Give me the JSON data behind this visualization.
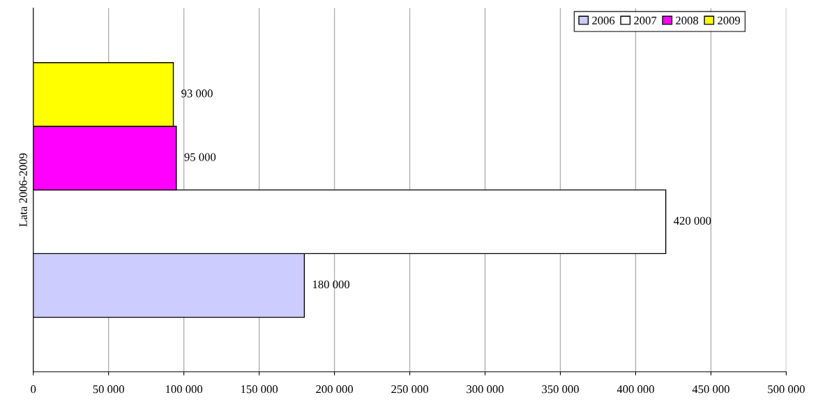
{
  "chart_data": {
    "type": "bar",
    "orientation": "horizontal",
    "ylabel": "Lata 2006-2009",
    "categories": [
      null
    ],
    "series": [
      {
        "name": "2006",
        "color": "#ccccff",
        "values": [
          180000
        ],
        "value_labels": [
          "180 000"
        ]
      },
      {
        "name": "2007",
        "color": "#ffffff",
        "values": [
          420000
        ],
        "value_labels": [
          "420 000"
        ]
      },
      {
        "name": "2008",
        "color": "#ff00ff",
        "values": [
          95000
        ],
        "value_labels": [
          "95 000"
        ]
      },
      {
        "name": "2009",
        "color": "#ffff00",
        "values": [
          93000
        ],
        "value_labels": [
          "93 000"
        ]
      }
    ],
    "xlim": [
      0,
      500000
    ],
    "xticks": [
      0,
      {
        "value": 50000,
        "label": "50 000"
      },
      {
        "value": 100000,
        "label": "100 000"
      },
      {
        "value": 150000,
        "label": "150 000"
      },
      {
        "value": 200000,
        "label": "200 000"
      },
      {
        "value": 250000,
        "label": "250 000"
      },
      {
        "value": 300000,
        "label": "300 000"
      },
      {
        "value": 350000,
        "label": "350 000"
      },
      {
        "value": 400000,
        "label": "400 000"
      },
      {
        "value": 450000,
        "label": "450 000"
      },
      {
        "value": 500000,
        "label": "500 000"
      }
    ],
    "grid": "x",
    "legend": "top right"
  }
}
